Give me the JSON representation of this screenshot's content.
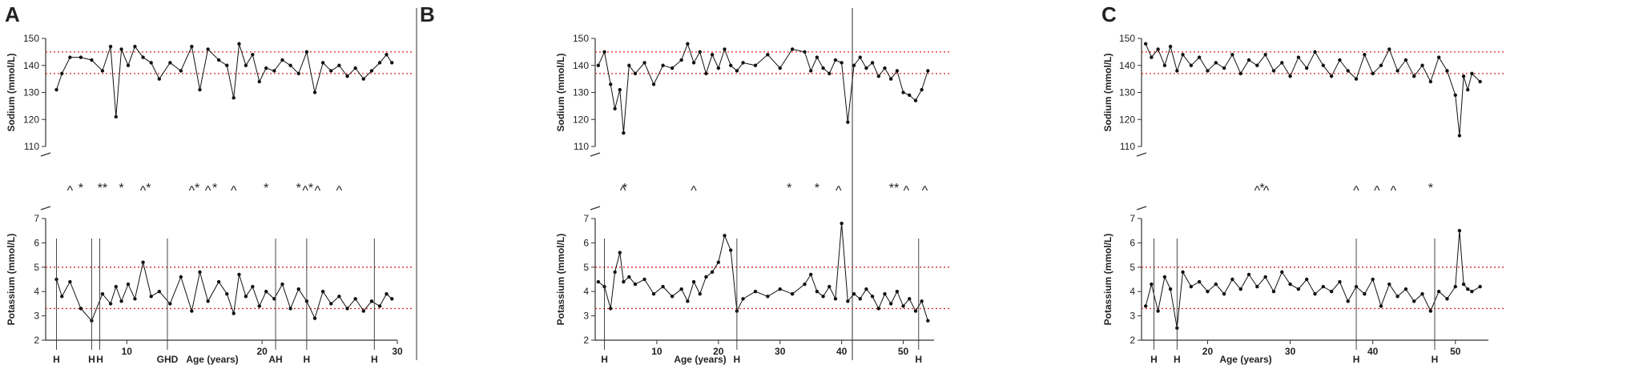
{
  "figure": {
    "panel_labels": [
      "A",
      "B",
      "C"
    ],
    "colors": {
      "data": "#111111",
      "reference": "#e02020",
      "axis": "#333333",
      "divider": "#555555"
    }
  },
  "chart_data": [
    {
      "panel": "A",
      "type": "line",
      "xlabel": "Age (years)",
      "xlim": [
        4,
        30
      ],
      "x_ticks": [
        10,
        20,
        30
      ],
      "sodium": {
        "ylabel": "Sodium (mmol/L)",
        "ylim": [
          110,
          150
        ],
        "y_ticks": [
          110,
          120,
          130,
          140,
          150
        ],
        "ref_lines": [
          137,
          145
        ],
        "x": [
          4.8,
          5.2,
          5.8,
          6.6,
          7.4,
          8.2,
          8.8,
          9.2,
          9.6,
          10.1,
          10.6,
          11.2,
          11.8,
          12.4,
          13.2,
          14.0,
          14.8,
          15.4,
          16.0,
          16.8,
          17.4,
          17.9,
          18.3,
          18.8,
          19.3,
          19.8,
          20.3,
          20.9,
          21.5,
          22.1,
          22.7,
          23.3,
          23.9,
          24.5,
          25.1,
          25.7,
          26.3,
          26.9,
          27.5,
          28.1,
          28.7,
          29.2,
          29.6
        ],
        "values": [
          131,
          137,
          143,
          143,
          142,
          138,
          147,
          121,
          146,
          140,
          147,
          143,
          141,
          135,
          141,
          138,
          147,
          131,
          146,
          142,
          140,
          128,
          148,
          140,
          144,
          134,
          139,
          138,
          142,
          140,
          137,
          145,
          130,
          141,
          138,
          140,
          136,
          139,
          135,
          138,
          141,
          144,
          141
        ]
      },
      "potassium": {
        "ylabel": "Potassium (mmol/L)",
        "ylim": [
          2,
          7
        ],
        "y_ticks": [
          2,
          3,
          4,
          5,
          6,
          7
        ],
        "ref_lines": [
          3.3,
          5.0
        ],
        "x": [
          4.8,
          5.2,
          5.8,
          6.6,
          7.4,
          8.2,
          8.8,
          9.2,
          9.6,
          10.1,
          10.6,
          11.2,
          11.8,
          12.4,
          13.2,
          14.0,
          14.8,
          15.4,
          16.0,
          16.8,
          17.4,
          17.9,
          18.3,
          18.8,
          19.3,
          19.8,
          20.3,
          20.9,
          21.5,
          22.1,
          22.7,
          23.3,
          23.9,
          24.5,
          25.1,
          25.7,
          26.3,
          26.9,
          27.5,
          28.1,
          28.7,
          29.2,
          29.6
        ],
        "values": [
          4.5,
          3.8,
          4.4,
          3.3,
          2.8,
          3.9,
          3.5,
          4.2,
          3.6,
          4.3,
          3.7,
          5.2,
          3.8,
          4.0,
          3.5,
          4.6,
          3.2,
          4.8,
          3.6,
          4.4,
          3.9,
          3.1,
          4.7,
          3.8,
          4.2,
          3.4,
          4.0,
          3.7,
          4.3,
          3.3,
          4.1,
          3.6,
          2.9,
          4.0,
          3.5,
          3.8,
          3.3,
          3.7,
          3.2,
          3.6,
          3.4,
          3.9,
          3.7
        ]
      },
      "annotations": [
        {
          "text": "^",
          "x": 5.8
        },
        {
          "text": "*",
          "x": 6.6
        },
        {
          "text": "**",
          "x": 8.2
        },
        {
          "text": "*",
          "x": 9.6
        },
        {
          "text": "^",
          "x": 11.2
        },
        {
          "text": "*",
          "x": 11.6
        },
        {
          "text": "^",
          "x": 14.8
        },
        {
          "text": "*",
          "x": 15.2
        },
        {
          "text": "^",
          "x": 16.0
        },
        {
          "text": "*",
          "x": 16.5
        },
        {
          "text": "^",
          "x": 17.9
        },
        {
          "text": "*",
          "x": 20.3
        },
        {
          "text": "*",
          "x": 22.7
        },
        {
          "text": "^",
          "x": 23.2
        },
        {
          "text": "*",
          "x": 23.6
        },
        {
          "text": "^",
          "x": 24.1
        },
        {
          "text": "^",
          "x": 25.7
        }
      ],
      "events": [
        {
          "label": "H",
          "x": 4.8
        },
        {
          "label": "H",
          "x": 7.4
        },
        {
          "label": "H",
          "x": 8.0
        },
        {
          "label": "GHD",
          "x": 13.0
        },
        {
          "label": "AH",
          "x": 21.0
        },
        {
          "label": "H",
          "x": 23.3
        },
        {
          "label": "H",
          "x": 28.3
        }
      ]
    },
    {
      "panel": "B",
      "type": "line",
      "xlabel": "Age (years)",
      "xlim": [
        0,
        55
      ],
      "x_ticks": [
        10,
        20,
        30,
        40,
        50
      ],
      "sodium": {
        "ylabel": "Sodium (mmol/L)",
        "ylim": [
          110,
          150
        ],
        "y_ticks": [
          110,
          120,
          130,
          140,
          150
        ],
        "ref_lines": [
          137,
          145
        ],
        "x": [
          0.5,
          1.5,
          2.5,
          3.2,
          4.0,
          4.6,
          5.5,
          6.5,
          8,
          9.5,
          11,
          12.5,
          14,
          15,
          16,
          17,
          18,
          19,
          20,
          21,
          22,
          23,
          24,
          26,
          28,
          30,
          32,
          34,
          35,
          36,
          37,
          38,
          39,
          40,
          41,
          42,
          43,
          44,
          45,
          46,
          47,
          48,
          49,
          50,
          51,
          52,
          53,
          54
        ],
        "values": [
          140,
          145,
          133,
          124,
          131,
          115,
          140,
          137,
          141,
          133,
          140,
          139,
          142,
          148,
          141,
          145,
          137,
          144,
          139,
          146,
          140,
          138,
          141,
          140,
          144,
          139,
          146,
          145,
          138,
          143,
          139,
          137,
          142,
          141,
          119,
          140,
          143,
          139,
          141,
          136,
          139,
          135,
          138,
          130,
          129,
          127,
          131,
          138
        ]
      },
      "potassium": {
        "ylabel": "Potassium (mmol/L)",
        "ylim": [
          2,
          7
        ],
        "y_ticks": [
          2,
          3,
          4,
          5,
          6,
          7
        ],
        "ref_lines": [
          3.3,
          5.0
        ],
        "x": [
          0.5,
          1.5,
          2.5,
          3.2,
          4.0,
          4.6,
          5.5,
          6.5,
          8,
          9.5,
          11,
          12.5,
          14,
          15,
          16,
          17,
          18,
          19,
          20,
          21,
          22,
          23,
          24,
          26,
          28,
          30,
          32,
          34,
          35,
          36,
          37,
          38,
          39,
          40,
          41,
          42,
          43,
          44,
          45,
          46,
          47,
          48,
          49,
          50,
          51,
          52,
          53,
          54
        ],
        "values": [
          4.4,
          4.2,
          3.3,
          4.8,
          5.6,
          4.4,
          4.6,
          4.3,
          4.5,
          3.9,
          4.2,
          3.8,
          4.1,
          3.6,
          4.4,
          3.9,
          4.6,
          4.8,
          5.2,
          6.3,
          5.7,
          3.2,
          3.7,
          4.0,
          3.8,
          4.1,
          3.9,
          4.3,
          4.7,
          4.0,
          3.8,
          4.2,
          3.7,
          6.8,
          3.6,
          3.9,
          3.7,
          4.1,
          3.8,
          3.3,
          3.9,
          3.5,
          4.0,
          3.4,
          3.7,
          3.2,
          3.6,
          2.8
        ]
      },
      "annotations": [
        {
          "text": "^",
          "x": 4.5
        },
        {
          "text": "*",
          "x": 4.8
        },
        {
          "text": "^",
          "x": 16.0
        },
        {
          "text": "*",
          "x": 31.5
        },
        {
          "text": "*",
          "x": 36.0
        },
        {
          "text": "^",
          "x": 39.5
        },
        {
          "text": "**",
          "x": 48.5
        },
        {
          "text": "^",
          "x": 50.5
        },
        {
          "text": "^",
          "x": 53.5
        }
      ],
      "events": [
        {
          "label": "H",
          "x": 1.5
        },
        {
          "label": "H",
          "x": 23.0
        },
        {
          "label": "H",
          "x": 52.5
        }
      ]
    },
    {
      "panel": "C",
      "type": "line",
      "xlabel": "Age (years)",
      "xlim": [
        12,
        54
      ],
      "x_ticks": [
        20,
        30,
        40,
        50
      ],
      "sodium": {
        "ylabel": "Sodium (mmol/L)",
        "ylim": [
          110,
          150
        ],
        "y_ticks": [
          110,
          120,
          130,
          140,
          150
        ],
        "ref_lines": [
          137,
          145
        ],
        "x": [
          12.5,
          13.2,
          14,
          14.8,
          15.5,
          16.3,
          17,
          18,
          19,
          20,
          21,
          22,
          23,
          24,
          25,
          26,
          27,
          28,
          29,
          30,
          31,
          32,
          33,
          34,
          35,
          36,
          37,
          38,
          39,
          40,
          41,
          42,
          43,
          44,
          45,
          46,
          47,
          48,
          49,
          50,
          50.5,
          51,
          51.5,
          52,
          53
        ],
        "values": [
          148,
          143,
          146,
          140,
          147,
          138,
          144,
          140,
          143,
          138,
          141,
          139,
          144,
          137,
          142,
          140,
          144,
          138,
          141,
          136,
          143,
          139,
          145,
          140,
          136,
          142,
          138,
          135,
          144,
          137,
          140,
          146,
          138,
          142,
          136,
          140,
          134,
          143,
          138,
          129,
          114,
          136,
          131,
          137,
          134
        ]
      },
      "potassium": {
        "ylabel": "Potassium (mmol/L)",
        "ylim": [
          2,
          7
        ],
        "y_ticks": [
          2,
          3,
          4,
          5,
          6,
          7
        ],
        "ref_lines": [
          3.3,
          5.0
        ],
        "x": [
          12.5,
          13.2,
          14,
          14.8,
          15.5,
          16.3,
          17,
          18,
          19,
          20,
          21,
          22,
          23,
          24,
          25,
          26,
          27,
          28,
          29,
          30,
          31,
          32,
          33,
          34,
          35,
          36,
          37,
          38,
          39,
          40,
          41,
          42,
          43,
          44,
          45,
          46,
          47,
          48,
          49,
          50,
          50.5,
          51,
          51.5,
          52,
          53
        ],
        "values": [
          3.4,
          4.3,
          3.2,
          4.6,
          4.1,
          2.5,
          4.8,
          4.2,
          4.4,
          4.0,
          4.3,
          3.9,
          4.5,
          4.1,
          4.7,
          4.2,
          4.6,
          4.0,
          4.8,
          4.3,
          4.1,
          4.5,
          3.9,
          4.2,
          4.0,
          4.4,
          3.6,
          4.2,
          3.9,
          4.5,
          3.4,
          4.3,
          3.8,
          4.1,
          3.6,
          3.9,
          3.2,
          4.0,
          3.7,
          4.2,
          6.5,
          4.3,
          4.1,
          4.0,
          4.2
        ]
      },
      "annotations": [
        {
          "text": "^",
          "x": 26.0
        },
        {
          "text": "*",
          "x": 26.6
        },
        {
          "text": "^",
          "x": 27.1
        },
        {
          "text": "^",
          "x": 38.0
        },
        {
          "text": "^",
          "x": 40.5
        },
        {
          "text": "^",
          "x": 42.5
        },
        {
          "text": "*",
          "x": 47.0
        }
      ],
      "events": [
        {
          "label": "H",
          "x": 13.5
        },
        {
          "label": "H",
          "x": 16.3
        },
        {
          "label": "H",
          "x": 38.0
        },
        {
          "label": "H",
          "x": 47.5
        }
      ]
    }
  ]
}
